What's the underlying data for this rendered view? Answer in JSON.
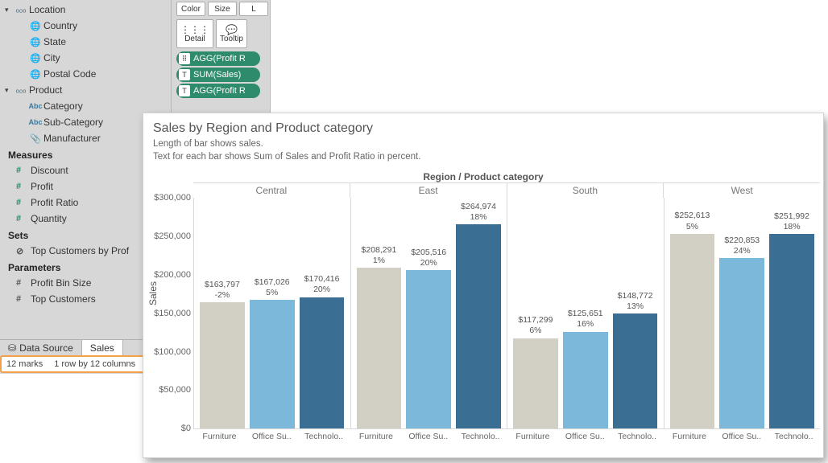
{
  "data_pane": {
    "hierarchies": [
      {
        "name": "Location",
        "icon": "hierarchy",
        "children": [
          {
            "name": "Country",
            "icon": "globe"
          },
          {
            "name": "State",
            "icon": "globe"
          },
          {
            "name": "City",
            "icon": "globe"
          },
          {
            "name": "Postal Code",
            "icon": "globe"
          }
        ]
      },
      {
        "name": "Product",
        "icon": "hierarchy",
        "children": [
          {
            "name": "Category",
            "icon": "abc"
          },
          {
            "name": "Sub-Category",
            "icon": "abc"
          },
          {
            "name": "Manufacturer",
            "icon": "clip"
          }
        ]
      }
    ],
    "measures_label": "Measures",
    "measures": [
      {
        "name": "Discount"
      },
      {
        "name": "Profit"
      },
      {
        "name": "Profit Ratio"
      },
      {
        "name": "Quantity"
      }
    ],
    "sets_label": "Sets",
    "sets": [
      {
        "name": "Top Customers by Prof"
      }
    ],
    "parameters_label": "Parameters",
    "parameters": [
      {
        "name": "Profit Bin Size"
      },
      {
        "name": "Top Customers"
      }
    ],
    "tabs": {
      "data_source": "Data Source",
      "sheet": "Sales"
    },
    "status": {
      "marks": "12 marks",
      "rows_cols": "1 row by 12 columns"
    }
  },
  "marks_card": {
    "shelf_small": [
      "Color",
      "Size",
      "L"
    ],
    "shelf_big": [
      {
        "glyph": "⋮⋮⋮",
        "label": "Detail"
      },
      {
        "glyph": "💬",
        "label": "Tooltip"
      }
    ],
    "pills": [
      {
        "icon": "⠿",
        "text": "AGG(Profit R"
      },
      {
        "icon": "T",
        "text": "SUM(Sales)"
      },
      {
        "icon": "T",
        "text": "AGG(Profit R"
      }
    ]
  },
  "chart": {
    "type": "bar",
    "title": "Sales by Region and Product category",
    "subtitle1": "Length of bar shows sales.",
    "subtitle2": "Text for each bar shows Sum of Sales and Profit Ratio in percent.",
    "header_label": "Region / Product category",
    "y_label": "Sales",
    "ylim": [
      0,
      300000
    ],
    "ytick_step": 50000,
    "yticks": [
      {
        "v": 0,
        "label": "$0"
      },
      {
        "v": 50000,
        "label": "$50,000"
      },
      {
        "v": 100000,
        "label": "$100,000"
      },
      {
        "v": 150000,
        "label": "$150,000"
      },
      {
        "v": 200000,
        "label": "$200,000"
      },
      {
        "v": 250000,
        "label": "$250,000"
      },
      {
        "v": 300000,
        "label": "$300,000"
      }
    ],
    "regions": [
      "Central",
      "East",
      "South",
      "West"
    ],
    "categories_display": [
      "Furniture",
      "Office Su..",
      "Technolo.."
    ],
    "bar_colors": [
      "#d2cfc4",
      "#7cb8da",
      "#3a6f93"
    ],
    "background_color": "#ffffff",
    "grid_color": "#d8d8d8",
    "title_fontsize": 16,
    "label_fontsize": 12,
    "data": {
      "Central": [
        {
          "value": 163797,
          "value_label": "$163,797",
          "pct": "-2%"
        },
        {
          "value": 167026,
          "value_label": "$167,026",
          "pct": "5%"
        },
        {
          "value": 170416,
          "value_label": "$170,416",
          "pct": "20%"
        }
      ],
      "East": [
        {
          "value": 208291,
          "value_label": "$208,291",
          "pct": "1%"
        },
        {
          "value": 205516,
          "value_label": "$205,516",
          "pct": "20%"
        },
        {
          "value": 264974,
          "value_label": "$264,974",
          "pct": "18%"
        }
      ],
      "South": [
        {
          "value": 117299,
          "value_label": "$117,299",
          "pct": "6%"
        },
        {
          "value": 125651,
          "value_label": "$125,651",
          "pct": "16%"
        },
        {
          "value": 148772,
          "value_label": "$148,772",
          "pct": "13%"
        }
      ],
      "West": [
        {
          "value": 252613,
          "value_label": "$252,613",
          "pct": "5%"
        },
        {
          "value": 220853,
          "value_label": "$220,853",
          "pct": "24%"
        },
        {
          "value": 251992,
          "value_label": "$251,992",
          "pct": "18%"
        }
      ]
    }
  }
}
